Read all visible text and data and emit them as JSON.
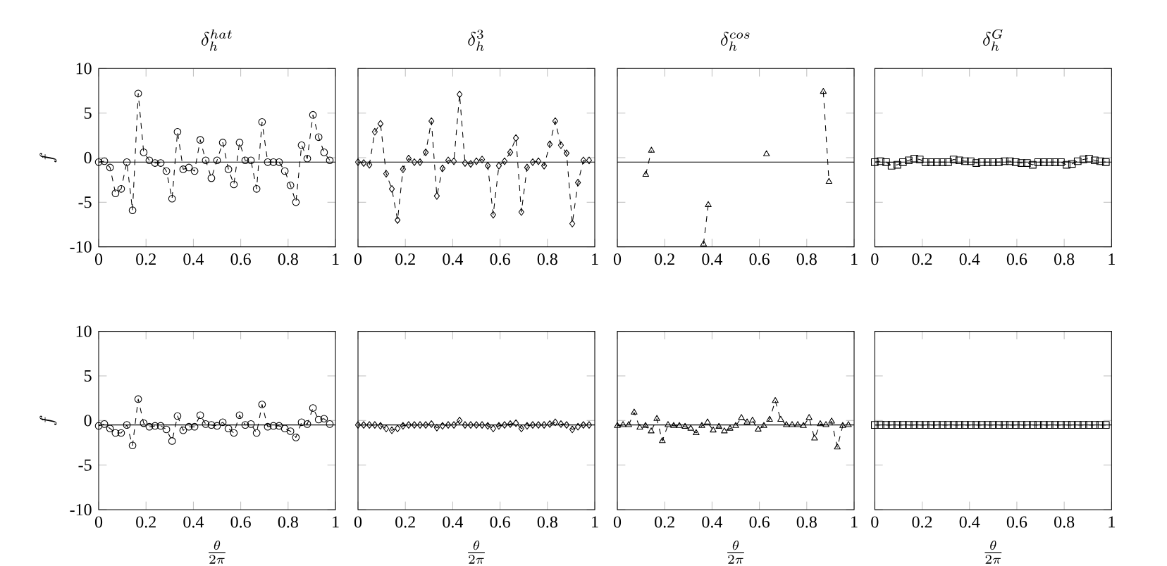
{
  "chart_data": [
    {
      "type": "line",
      "title": "\\delta_h^{hat}",
      "ylabel": "f",
      "marker": "circle",
      "line_style": "dashed",
      "xlim": [
        0,
        1
      ],
      "ylim": [
        -10,
        10
      ],
      "xticks": [
        0,
        0.2,
        0.4,
        0.6,
        0.8,
        1
      ],
      "yticks": [
        -10,
        -5,
        0,
        5,
        10
      ],
      "ref_lines": [
        {
          "axis": "y",
          "value": -0.5,
          "color": "#000000"
        }
      ],
      "x": [
        0,
        0.024,
        0.048,
        0.071,
        0.095,
        0.119,
        0.143,
        0.167,
        0.19,
        0.214,
        0.238,
        0.262,
        0.286,
        0.31,
        0.333,
        0.357,
        0.381,
        0.405,
        0.429,
        0.452,
        0.476,
        0.5,
        0.524,
        0.548,
        0.571,
        0.595,
        0.619,
        0.643,
        0.667,
        0.69,
        0.714,
        0.738,
        0.762,
        0.786,
        0.81,
        0.833,
        0.857,
        0.881,
        0.905,
        0.929,
        0.952,
        0.976
      ],
      "series": [
        {
          "color": "#000000",
          "values": [
            -0.5,
            -0.4,
            -1.1,
            -4.0,
            -3.5,
            -0.5,
            -5.9,
            7.2,
            0.6,
            -0.3,
            -0.6,
            -0.6,
            -1.5,
            -4.6,
            2.9,
            -1.3,
            -1.1,
            -1.5,
            2.0,
            -0.3,
            -2.3,
            -0.3,
            1.7,
            -1.3,
            -3.0,
            1.7,
            -0.3,
            -0.3,
            -3.5,
            4.0,
            -0.5,
            -0.5,
            -0.5,
            -1.5,
            -3.1,
            -5.0,
            1.4,
            -0.1,
            4.8,
            2.3,
            0.6,
            -0.3
          ]
        }
      ]
    },
    {
      "type": "line",
      "title": "\\delta_h^{3}",
      "marker": "diamond",
      "line_style": "dashed",
      "tick_labels": "x",
      "xlim": [
        0,
        1
      ],
      "ylim": [
        -10,
        10
      ],
      "xticks": [
        0,
        0.2,
        0.4,
        0.6,
        0.8,
        1
      ],
      "yticks": [
        -10,
        -5,
        0,
        5,
        10
      ],
      "ref_lines": [
        {
          "axis": "y",
          "value": -0.5,
          "color": "#000000"
        }
      ],
      "x": [
        0,
        0.024,
        0.048,
        0.071,
        0.095,
        0.119,
        0.143,
        0.167,
        0.19,
        0.214,
        0.238,
        0.262,
        0.286,
        0.31,
        0.333,
        0.357,
        0.381,
        0.405,
        0.429,
        0.452,
        0.476,
        0.5,
        0.524,
        0.548,
        0.571,
        0.595,
        0.619,
        0.643,
        0.667,
        0.69,
        0.714,
        0.738,
        0.762,
        0.786,
        0.81,
        0.833,
        0.857,
        0.881,
        0.905,
        0.929,
        0.952,
        0.976
      ],
      "series": [
        {
          "color": "#000000",
          "values": [
            -0.5,
            -0.6,
            -0.8,
            2.9,
            3.8,
            -1.8,
            -3.5,
            -7.0,
            -1.3,
            -0.1,
            -0.5,
            -0.5,
            0.6,
            4.1,
            -4.3,
            -1.2,
            -0.3,
            -0.4,
            7.1,
            -0.6,
            -0.7,
            -0.4,
            -0.2,
            -0.9,
            -6.4,
            -0.9,
            -0.4,
            0.6,
            2.2,
            -6.1,
            -1.1,
            -0.5,
            -0.4,
            -0.9,
            1.5,
            4.1,
            1.4,
            0.5,
            -7.4,
            -2.8,
            -0.3,
            -0.3
          ]
        }
      ]
    },
    {
      "type": "line",
      "title": "\\delta_h^{cos}",
      "marker": "triangle",
      "line_style": "dashed",
      "tick_labels": "x",
      "xlim": [
        0,
        1
      ],
      "ylim": [
        -10,
        10
      ],
      "xticks": [
        0,
        0.2,
        0.4,
        0.6,
        0.8,
        1
      ],
      "yticks": [
        -10,
        -5,
        0,
        5,
        10
      ],
      "ref_lines": [
        {
          "axis": "y",
          "value": -0.5,
          "color": "#000000"
        }
      ],
      "series": [
        {
          "color": "#000000",
          "x": [
            0.12,
            0.144,
            0.25,
            0.364,
            0.384,
            0.5,
            0.63,
            0.75,
            0.87,
            0.894
          ],
          "values": [
            -1.9,
            0.8,
            null,
            -9.7,
            -5.3,
            null,
            0.4,
            null,
            7.4,
            -2.7
          ]
        }
      ]
    },
    {
      "type": "line",
      "title": "\\delta_h^{G}",
      "marker": "square",
      "line_style": "dashed",
      "tick_labels": "x",
      "xlim": [
        0,
        1
      ],
      "ylim": [
        -10,
        10
      ],
      "xticks": [
        0,
        0.2,
        0.4,
        0.6,
        0.8,
        1
      ],
      "yticks": [
        -10,
        -5,
        0,
        5,
        10
      ],
      "ref_lines": [
        {
          "axis": "y",
          "value": -0.5,
          "color": "#000000"
        }
      ],
      "x": [
        0,
        0.024,
        0.048,
        0.071,
        0.095,
        0.119,
        0.143,
        0.167,
        0.19,
        0.214,
        0.238,
        0.262,
        0.286,
        0.31,
        0.333,
        0.357,
        0.381,
        0.405,
        0.429,
        0.452,
        0.476,
        0.5,
        0.524,
        0.548,
        0.571,
        0.595,
        0.619,
        0.643,
        0.667,
        0.69,
        0.714,
        0.738,
        0.762,
        0.786,
        0.81,
        0.833,
        0.857,
        0.881,
        0.905,
        0.929,
        0.952,
        0.976
      ],
      "series": [
        {
          "color": "#000000",
          "values": [
            -0.5,
            -0.4,
            -0.5,
            -0.9,
            -0.8,
            -0.5,
            -0.3,
            -0.1,
            -0.2,
            -0.5,
            -0.5,
            -0.5,
            -0.5,
            -0.5,
            -0.2,
            -0.3,
            -0.4,
            -0.4,
            -0.6,
            -0.5,
            -0.5,
            -0.5,
            -0.5,
            -0.4,
            -0.4,
            -0.5,
            -0.6,
            -0.6,
            -0.8,
            -0.5,
            -0.5,
            -0.5,
            -0.5,
            -0.5,
            -0.8,
            -0.7,
            -0.4,
            -0.2,
            -0.1,
            -0.3,
            -0.4,
            -0.5
          ]
        }
      ]
    },
    {
      "type": "line",
      "xlabel": "\\frac{\\theta}{2\\pi}",
      "ylabel": "f",
      "marker": "circle",
      "line_style": "dashed",
      "xlim": [
        0,
        1
      ],
      "ylim": [
        -10,
        10
      ],
      "xticks": [
        0,
        0.2,
        0.4,
        0.6,
        0.8,
        1
      ],
      "yticks": [
        -10,
        -5,
        0,
        5,
        10
      ],
      "ref_lines": [
        {
          "axis": "y",
          "value": -0.5,
          "color": "#000000"
        }
      ],
      "x": [
        0,
        0.024,
        0.048,
        0.071,
        0.095,
        0.119,
        0.143,
        0.167,
        0.19,
        0.214,
        0.238,
        0.262,
        0.286,
        0.31,
        0.333,
        0.357,
        0.381,
        0.405,
        0.429,
        0.452,
        0.476,
        0.5,
        0.524,
        0.548,
        0.571,
        0.595,
        0.619,
        0.643,
        0.667,
        0.69,
        0.714,
        0.738,
        0.762,
        0.786,
        0.81,
        0.833,
        0.857,
        0.881,
        0.905,
        0.929,
        0.952,
        0.976
      ],
      "series": [
        {
          "color": "#000000",
          "values": [
            -0.6,
            -0.4,
            -0.9,
            -1.4,
            -1.4,
            -0.5,
            -2.8,
            2.4,
            -0.3,
            -0.7,
            -0.6,
            -0.6,
            -1.0,
            -2.3,
            0.5,
            -1.1,
            -0.7,
            -0.7,
            0.6,
            -0.4,
            -0.5,
            -0.6,
            -0.2,
            -0.9,
            -1.4,
            0.6,
            -0.5,
            -0.4,
            -1.4,
            1.8,
            -0.7,
            -0.6,
            -0.6,
            -0.9,
            -1.2,
            -1.9,
            -0.2,
            -0.4,
            1.4,
            0.1,
            0.2,
            -0.4
          ]
        }
      ]
    },
    {
      "type": "line",
      "xlabel": "\\frac{\\theta}{2\\pi}",
      "marker": "diamond",
      "line_style": "dashed",
      "tick_labels": "x",
      "xlim": [
        0,
        1
      ],
      "ylim": [
        -10,
        10
      ],
      "xticks": [
        0,
        0.2,
        0.4,
        0.6,
        0.8,
        1
      ],
      "yticks": [
        -10,
        -5,
        0,
        5,
        10
      ],
      "ref_lines": [
        {
          "axis": "y",
          "value": -0.5,
          "color": "#000000"
        }
      ],
      "x": [
        0,
        0.024,
        0.048,
        0.071,
        0.095,
        0.119,
        0.143,
        0.167,
        0.19,
        0.214,
        0.238,
        0.262,
        0.286,
        0.31,
        0.333,
        0.357,
        0.381,
        0.405,
        0.429,
        0.452,
        0.476,
        0.5,
        0.524,
        0.548,
        0.571,
        0.595,
        0.619,
        0.643,
        0.667,
        0.69,
        0.714,
        0.738,
        0.762,
        0.786,
        0.81,
        0.833,
        0.857,
        0.881,
        0.905,
        0.929,
        0.952,
        0.976
      ],
      "series": [
        {
          "color": "#000000",
          "values": [
            -0.5,
            -0.5,
            -0.5,
            -0.5,
            -0.6,
            -0.9,
            -1.1,
            -0.9,
            -0.6,
            -0.5,
            -0.5,
            -0.5,
            -0.5,
            -0.4,
            -0.8,
            -0.6,
            -0.5,
            -0.5,
            0.0,
            -0.5,
            -0.5,
            -0.5,
            -0.5,
            -0.6,
            -0.9,
            -0.6,
            -0.5,
            -0.4,
            -0.3,
            -0.9,
            -0.6,
            -0.5,
            -0.5,
            -0.5,
            -0.4,
            -0.2,
            -0.4,
            -0.5,
            -1.0,
            -0.7,
            -0.5,
            -0.5
          ]
        }
      ]
    },
    {
      "type": "line",
      "xlabel": "\\frac{\\theta}{2\\pi}",
      "marker": "triangle",
      "line_style": "dashed",
      "tick_labels": "x",
      "xlim": [
        0,
        1
      ],
      "ylim": [
        -10,
        10
      ],
      "xticks": [
        0,
        0.2,
        0.4,
        0.6,
        0.8,
        1
      ],
      "yticks": [
        -10,
        -5,
        0,
        5,
        10
      ],
      "ref_lines": [
        {
          "axis": "y",
          "value": -0.5,
          "color": "#000000"
        }
      ],
      "x": [
        0,
        0.024,
        0.048,
        0.071,
        0.095,
        0.119,
        0.143,
        0.167,
        0.19,
        0.214,
        0.238,
        0.262,
        0.286,
        0.31,
        0.333,
        0.357,
        0.381,
        0.405,
        0.429,
        0.452,
        0.476,
        0.5,
        0.524,
        0.548,
        0.571,
        0.595,
        0.619,
        0.643,
        0.667,
        0.69,
        0.714,
        0.738,
        0.762,
        0.786,
        0.81,
        0.833,
        0.857,
        0.881,
        0.905,
        0.929,
        0.952,
        0.976
      ],
      "series": [
        {
          "color": "#000000",
          "values": [
            -0.6,
            -0.5,
            -0.5,
            0.9,
            -0.8,
            -0.6,
            -1.2,
            0.2,
            -2.3,
            -0.5,
            -0.6,
            -0.6,
            -0.7,
            -0.9,
            -1.4,
            -0.6,
            -0.2,
            -1.1,
            -0.7,
            -1.2,
            -0.9,
            -0.6,
            0.3,
            -0.2,
            0.0,
            -1.0,
            -0.6,
            0.1,
            2.2,
            0.1,
            -0.5,
            -0.5,
            -0.5,
            -0.6,
            0.3,
            -2.0,
            -0.4,
            -0.5,
            -0.1,
            -3.0,
            -0.6,
            -0.5
          ]
        }
      ]
    },
    {
      "type": "line",
      "xlabel": "\\frac{\\theta}{2\\pi}",
      "marker": "square",
      "line_style": "dashed",
      "tick_labels": "x",
      "xlim": [
        0,
        1
      ],
      "ylim": [
        -10,
        10
      ],
      "xticks": [
        0,
        0.2,
        0.4,
        0.6,
        0.8,
        1
      ],
      "yticks": [
        -10,
        -5,
        0,
        5,
        10
      ],
      "ref_lines": [
        {
          "axis": "y",
          "value": -0.5,
          "color": "#000000"
        }
      ],
      "x": [
        0,
        0.024,
        0.048,
        0.071,
        0.095,
        0.119,
        0.143,
        0.167,
        0.19,
        0.214,
        0.238,
        0.262,
        0.286,
        0.31,
        0.333,
        0.357,
        0.381,
        0.405,
        0.429,
        0.452,
        0.476,
        0.5,
        0.524,
        0.548,
        0.571,
        0.595,
        0.619,
        0.643,
        0.667,
        0.69,
        0.714,
        0.738,
        0.762,
        0.786,
        0.81,
        0.833,
        0.857,
        0.881,
        0.905,
        0.929,
        0.952,
        0.976
      ],
      "series": [
        {
          "color": "#000000",
          "values": [
            -0.5,
            -0.5,
            -0.5,
            -0.5,
            -0.5,
            -0.5,
            -0.5,
            -0.5,
            -0.5,
            -0.5,
            -0.5,
            -0.5,
            -0.5,
            -0.5,
            -0.5,
            -0.5,
            -0.5,
            -0.5,
            -0.5,
            -0.5,
            -0.5,
            -0.5,
            -0.5,
            -0.5,
            -0.5,
            -0.5,
            -0.5,
            -0.5,
            -0.5,
            -0.5,
            -0.5,
            -0.5,
            -0.5,
            -0.5,
            -0.5,
            -0.5,
            -0.5,
            -0.5,
            -0.5,
            -0.5,
            -0.5,
            -0.5
          ]
        }
      ]
    }
  ]
}
